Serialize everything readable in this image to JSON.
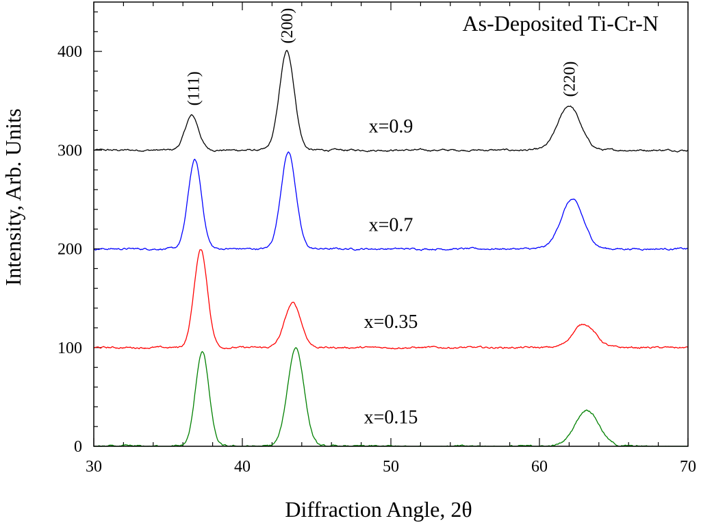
{
  "chart_data": {
    "type": "line",
    "title": "As-Deposited Ti-Cr-N",
    "xlabel": "Diffraction Angle, 2θ",
    "ylabel": "Intensity, Arb. Units",
    "xlim": [
      30,
      70
    ],
    "ylim": [
      0,
      450
    ],
    "x_ticks": [
      30,
      40,
      50,
      60,
      70
    ],
    "y_ticks": [
      0,
      100,
      200,
      300,
      400
    ],
    "peak_annotations": [
      {
        "label": "(111)",
        "x": 36.7,
        "y": 345
      },
      {
        "label": "(200)",
        "x": 43.0,
        "y": 408
      },
      {
        "label": "(220)",
        "x": 62.0,
        "y": 354
      }
    ],
    "series": [
      {
        "name": "x=0.9",
        "color": "#000000",
        "baseline": 300,
        "label_at": [
          50,
          325
        ],
        "peaks": [
          {
            "center": 36.6,
            "height": 35,
            "width": 0.45
          },
          {
            "center": 43.0,
            "height": 100,
            "width": 0.5
          },
          {
            "center": 62.0,
            "height": 45,
            "width": 0.75
          }
        ]
      },
      {
        "name": "x=0.7",
        "color": "#0000ff",
        "baseline": 200,
        "label_at": [
          50,
          225
        ],
        "peaks": [
          {
            "center": 36.8,
            "height": 90,
            "width": 0.45
          },
          {
            "center": 43.1,
            "height": 98,
            "width": 0.5
          },
          {
            "center": 62.2,
            "height": 50,
            "width": 0.75
          }
        ]
      },
      {
        "name": "x=0.35",
        "color": "#ff0000",
        "baseline": 100,
        "label_at": [
          50,
          127
        ],
        "peaks": [
          {
            "center": 37.2,
            "height": 99,
            "width": 0.45
          },
          {
            "center": 43.4,
            "height": 45,
            "width": 0.55
          },
          {
            "center": 63.0,
            "height": 24,
            "width": 0.75
          }
        ]
      },
      {
        "name": "x=0.15",
        "color": "#008000",
        "baseline": 0,
        "label_at": [
          50,
          30
        ],
        "peaks": [
          {
            "center": 37.3,
            "height": 96,
            "width": 0.45
          },
          {
            "center": 43.6,
            "height": 100,
            "width": 0.55
          },
          {
            "center": 63.2,
            "height": 37,
            "width": 0.8
          }
        ]
      }
    ]
  }
}
